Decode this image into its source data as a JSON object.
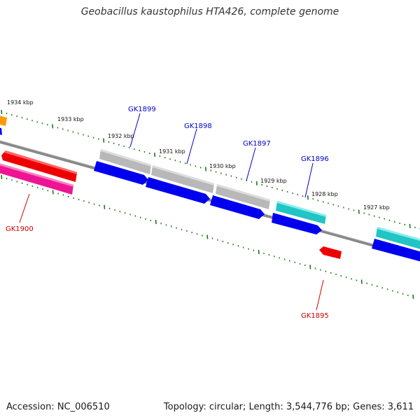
{
  "title": "Geobacillus kaustophilus HTA426, complete genome",
  "footer": {
    "accession": "Accession: NC_006510",
    "topology": "Topology: circular; Length: 3,544,776 bp; Genes: 3,611"
  },
  "scale_labels": [
    "1934 kbp",
    "1933 kbp",
    "1932 kbp",
    "1931 kbp",
    "1930 kbp",
    "1929 kbp",
    "1928 kbp",
    "1927 kbp"
  ],
  "gene_labels": [
    {
      "text": "GK1899",
      "color": "#0000cc"
    },
    {
      "text": "GK1898",
      "color": "#0000cc"
    },
    {
      "text": "GK1897",
      "color": "#0000cc"
    },
    {
      "text": "GK1896",
      "color": "#0000cc"
    },
    {
      "text": "GK1900",
      "color": "#cc0000"
    },
    {
      "text": "GK1895",
      "color": "#cc0000"
    }
  ],
  "colors": {
    "backbone": "#808080",
    "tick": "#1a7a1a",
    "cds_forward": "#0000ee",
    "rna_red": "#ee0000",
    "magenta": "#ee1493",
    "gray_feature": "#b8b8b8",
    "cyan_feature": "#22c4c4",
    "orange_feature": "#ff9900"
  }
}
